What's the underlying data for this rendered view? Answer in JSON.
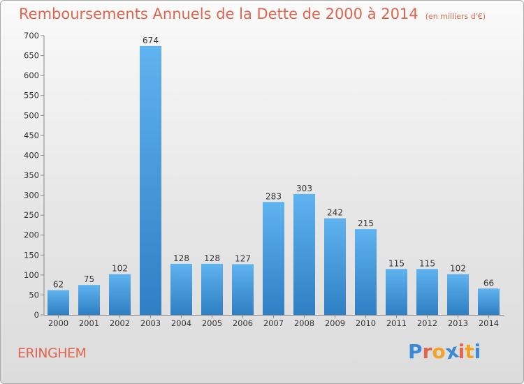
{
  "title": "Remboursements Annuels de la Dette de 2000 à 2014",
  "unit": "(en milliers d'€)",
  "commune": "ERINGHEM",
  "logo": {
    "letters": [
      "P",
      "r",
      "o",
      "x",
      "i",
      "t",
      "i"
    ],
    "colors": [
      "#3c8ad6",
      "#e0654f",
      "#f2a325",
      "#3c8ad6",
      "#e0654f",
      "#f2a325",
      "#3c8ad6"
    ]
  },
  "colors": {
    "bar_top": "#5fb3ee",
    "bar_bottom": "#2e7fc4",
    "title": "#e0654f"
  },
  "chart_data": {
    "type": "bar",
    "categories": [
      "2000",
      "2001",
      "2002",
      "2003",
      "2004",
      "2005",
      "2006",
      "2007",
      "2008",
      "2009",
      "2010",
      "2011",
      "2012",
      "2013",
      "2014"
    ],
    "values": [
      62,
      75,
      102,
      674,
      128,
      128,
      127,
      283,
      303,
      242,
      215,
      115,
      115,
      102,
      66
    ],
    "ylim": [
      0,
      700
    ],
    "yticks": [
      0,
      50,
      100,
      150,
      200,
      250,
      300,
      350,
      400,
      450,
      500,
      550,
      600,
      650,
      700
    ],
    "grid": false
  }
}
